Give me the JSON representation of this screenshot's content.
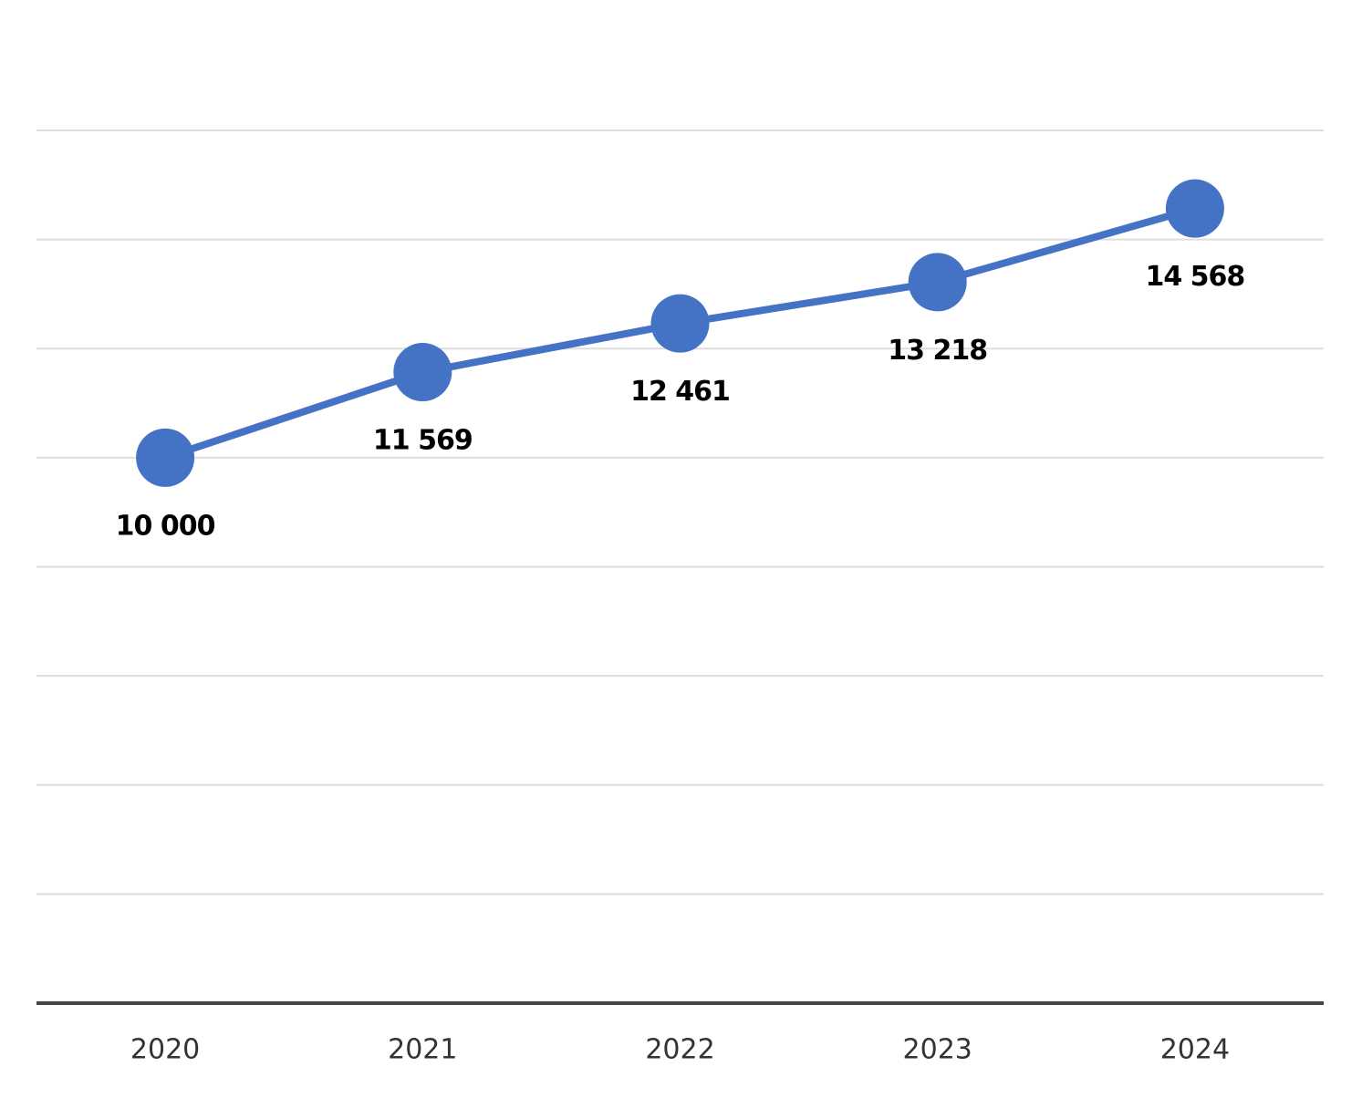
{
  "chart_data": {
    "type": "line",
    "categories": [
      "2020",
      "2021",
      "2022",
      "2023",
      "2024"
    ],
    "values": [
      10000,
      11569,
      12461,
      13218,
      14568
    ],
    "value_labels": [
      "10 000",
      "11 569",
      "12 461",
      "13 218",
      "14 568"
    ],
    "color": "#4472c4",
    "ylim": [
      0,
      16000
    ],
    "yticks": [
      0,
      2000,
      4000,
      6000,
      8000,
      10000,
      12000,
      14000,
      16000
    ],
    "grid": true
  }
}
